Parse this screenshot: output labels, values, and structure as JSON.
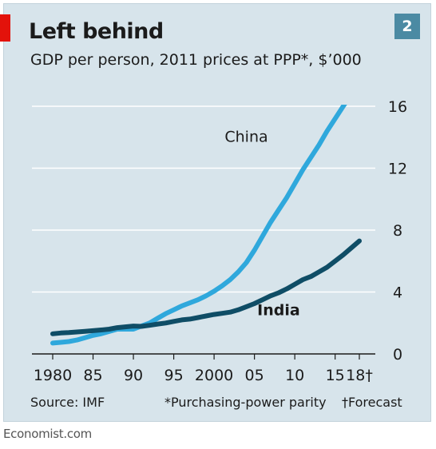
{
  "page": {
    "title": "Left behind",
    "subtitle": "GDP per person, 2011 prices at PPP*, $’000",
    "chart_number": "2",
    "source": "Source: IMF",
    "note": "*Purchasing-power parity",
    "forecast_note": "†Forecast",
    "brand": "Economist.com"
  },
  "chart_data": {
    "type": "line",
    "ylim": [
      0,
      16
    ],
    "yticks": [
      0,
      4,
      8,
      12,
      16
    ],
    "xlim": [
      1980,
      2018
    ],
    "xticks": [
      {
        "value": 1980,
        "label": "1980"
      },
      {
        "value": 1985,
        "label": "85"
      },
      {
        "value": 1990,
        "label": "90"
      },
      {
        "value": 1995,
        "label": "95"
      },
      {
        "value": 2000,
        "label": "2000"
      },
      {
        "value": 2005,
        "label": "05"
      },
      {
        "value": 2010,
        "label": "10"
      },
      {
        "value": 2015,
        "label": "15"
      },
      {
        "value": 2018,
        "label": "18†"
      }
    ],
    "grid": true,
    "series": [
      {
        "name": "China",
        "color": "#2fa8dc",
        "x": [
          1980,
          1981,
          1982,
          1983,
          1984,
          1985,
          1986,
          1987,
          1988,
          1989,
          1990,
          1991,
          1992,
          1993,
          1994,
          1995,
          1996,
          1997,
          1998,
          1999,
          2000,
          2001,
          2002,
          2003,
          2004,
          2005,
          2006,
          2007,
          2008,
          2009,
          2010,
          2011,
          2012,
          2013,
          2014,
          2015,
          2016,
          2017,
          2018
        ],
        "values": [
          0.7,
          0.75,
          0.8,
          0.9,
          1.05,
          1.2,
          1.3,
          1.45,
          1.6,
          1.6,
          1.6,
          1.8,
          2.0,
          2.3,
          2.6,
          2.85,
          3.1,
          3.3,
          3.5,
          3.75,
          4.05,
          4.4,
          4.8,
          5.3,
          5.9,
          6.7,
          7.6,
          8.5,
          9.3,
          10.1,
          11.0,
          11.9,
          12.7,
          13.5,
          14.4,
          15.2,
          16.0,
          16.8,
          17.6
        ]
      },
      {
        "name": "India",
        "color": "#0f4d66",
        "x": [
          1980,
          1981,
          1982,
          1983,
          1984,
          1985,
          1986,
          1987,
          1988,
          1989,
          1990,
          1991,
          1992,
          1993,
          1994,
          1995,
          1996,
          1997,
          1998,
          1999,
          2000,
          2001,
          2002,
          2003,
          2004,
          2005,
          2006,
          2007,
          2008,
          2009,
          2010,
          2011,
          2012,
          2013,
          2014,
          2015,
          2016,
          2017,
          2018
        ],
        "values": [
          1.3,
          1.35,
          1.38,
          1.42,
          1.46,
          1.5,
          1.55,
          1.6,
          1.7,
          1.75,
          1.8,
          1.78,
          1.85,
          1.93,
          2.0,
          2.1,
          2.2,
          2.25,
          2.35,
          2.45,
          2.55,
          2.62,
          2.7,
          2.85,
          3.05,
          3.25,
          3.5,
          3.75,
          3.95,
          4.2,
          4.5,
          4.8,
          5.0,
          5.3,
          5.6,
          6.0,
          6.4,
          6.85,
          7.3
        ]
      }
    ],
    "series_labels": [
      {
        "text": "China",
        "x": 2004,
        "y": 13.7
      },
      {
        "text": "India",
        "x": 2008,
        "y": 2.5
      }
    ]
  }
}
